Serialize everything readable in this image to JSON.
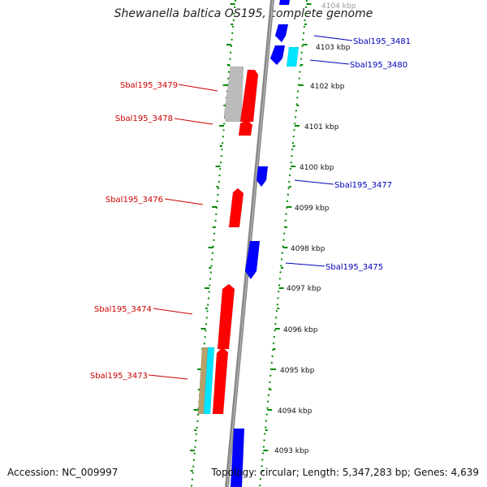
{
  "title": "Shewanella baltica OS195, complete genome",
  "accession_text": "Accession: NC_009997",
  "summary_text": "Topology: circular; Length: 5,347,283 bp; Genes: 4,639",
  "colors": {
    "forward_gene": "#ff0000",
    "reverse_gene": "#0000ff",
    "backbone": "#888888",
    "dotted_guides": "#008800",
    "ticks": "#008800",
    "rna_cyan": "#00e5ff",
    "rna_tan": "#b7a16b",
    "pseudo_grey": "#bbbbbb",
    "label_forward": "#cc0000",
    "label_reverse": "#0000bb"
  },
  "kbp_labels": [
    "4104 kbp",
    "4103 kbp",
    "4102 kbp",
    "4101 kbp",
    "4100 kbp",
    "4099 kbp",
    "4098 kbp",
    "4097 kbp",
    "4096 kbp",
    "4095 kbp",
    "4094 kbp",
    "4093 kbp"
  ],
  "gene_labels": [
    {
      "text": "Sbal195_3481",
      "strand": "reverse"
    },
    {
      "text": "Sbal195_3480",
      "strand": "reverse"
    },
    {
      "text": "Sbal195_3479",
      "strand": "forward"
    },
    {
      "text": "Sbal195_3478",
      "strand": "forward"
    },
    {
      "text": "Sbal195_3477",
      "strand": "reverse"
    },
    {
      "text": "Sbal195_3476",
      "strand": "forward"
    },
    {
      "text": "Sbal195_3475",
      "strand": "reverse"
    },
    {
      "text": "Sbal195_3474",
      "strand": "forward"
    },
    {
      "text": "Sbal195_3473",
      "strand": "forward"
    }
  ]
}
